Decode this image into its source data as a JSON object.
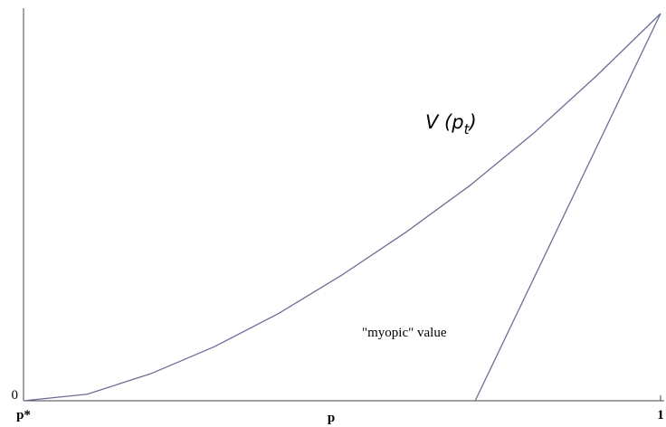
{
  "chart_data": {
    "type": "line",
    "x_label": "p",
    "xlim": [
      0,
      1
    ],
    "xticks": [
      {
        "value": 0,
        "label": "p*"
      },
      1
    ],
    "ylim": [
      0,
      1
    ],
    "yticks": [
      0
    ],
    "series": [
      {
        "name": "V (pt)",
        "color": "#6b6f94",
        "x": [
          0,
          0.1,
          0.2,
          0.3,
          0.4,
          0.5,
          0.6,
          0.7,
          0.8,
          0.9,
          1
        ],
        "values": [
          0,
          0.017,
          0.07,
          0.14,
          0.225,
          0.325,
          0.435,
          0.555,
          0.69,
          0.84,
          1
        ]
      },
      {
        "name": "\"myopic\" value",
        "color": "#6b6f94",
        "x": [
          0.709,
          1
        ],
        "values": [
          0,
          1
        ]
      }
    ],
    "annotations": [
      {
        "text": "V (p",
        "subscript": "t",
        "suffix": ")"
      },
      {
        "text": "\"myopic\" value"
      }
    ]
  }
}
